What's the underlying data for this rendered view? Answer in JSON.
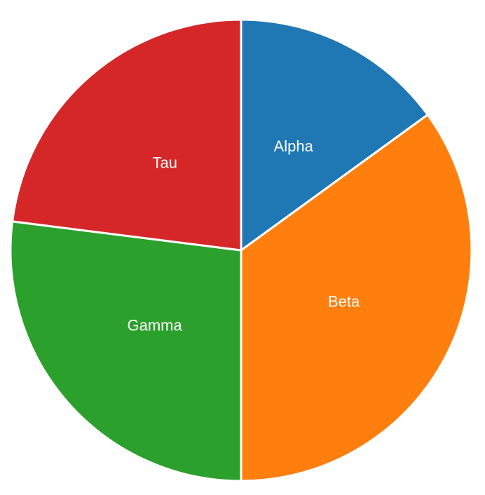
{
  "chart_data": {
    "type": "pie",
    "slices": [
      {
        "label": "Alpha",
        "value": 15,
        "color": "#1f77b4"
      },
      {
        "label": "Beta",
        "value": 35,
        "color": "#ff7f0e"
      },
      {
        "label": "Gamma",
        "value": 27,
        "color": "#2ca02c"
      },
      {
        "label": "Tau",
        "value": 23,
        "color": "#d62728"
      }
    ],
    "start_angle": "12 o'clock",
    "direction": "clockwise"
  }
}
